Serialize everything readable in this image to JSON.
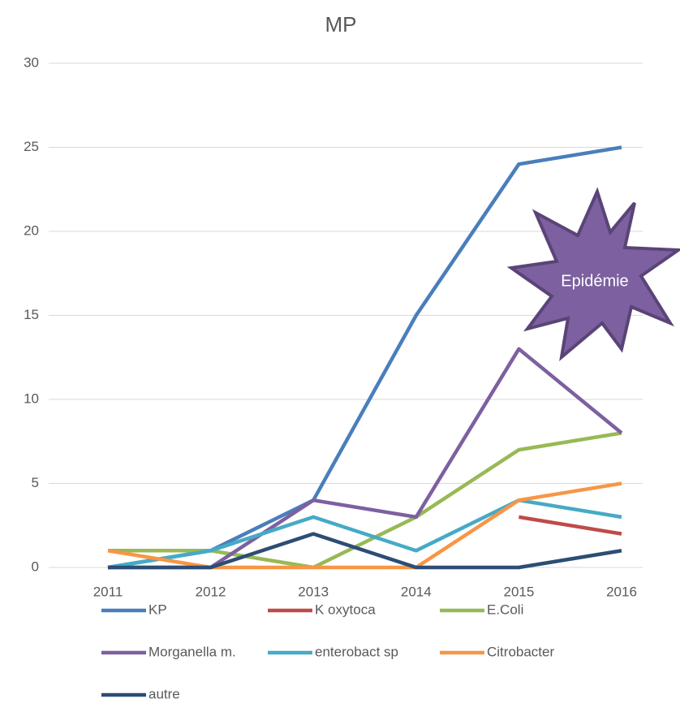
{
  "chart_data": {
    "type": "line",
    "title": "MP",
    "categories": [
      "2011",
      "2012",
      "2013",
      "2014",
      "2015",
      "2016"
    ],
    "series": [
      {
        "name": "KP",
        "color": "#4a7ebb",
        "values": [
          0,
          1,
          4,
          15,
          24,
          25
        ]
      },
      {
        "name": "K oxytoca",
        "color": "#be4b48",
        "values": [
          null,
          null,
          null,
          null,
          3,
          2
        ]
      },
      {
        "name": "E.Coli",
        "color": "#98b954",
        "values": [
          1,
          1,
          0,
          3,
          7,
          8
        ]
      },
      {
        "name": "Morganella m.",
        "color": "#7d60a0",
        "values": [
          0,
          0,
          4,
          3,
          13,
          8
        ]
      },
      {
        "name": "enterobact sp",
        "color": "#46aac5",
        "values": [
          0,
          1,
          3,
          1,
          4,
          3
        ]
      },
      {
        "name": "Citrobacter",
        "color": "#f79646",
        "values": [
          1,
          0,
          0,
          0,
          4,
          5
        ]
      },
      {
        "name": "autre",
        "color": "#2c4d75",
        "values": [
          0,
          0,
          2,
          0,
          0,
          1
        ]
      }
    ],
    "ylim": [
      0,
      30
    ],
    "yticks": [
      0,
      5,
      10,
      15,
      20,
      25,
      30
    ],
    "grid": true,
    "legend": "bottom",
    "annotation": "Epidémie"
  }
}
